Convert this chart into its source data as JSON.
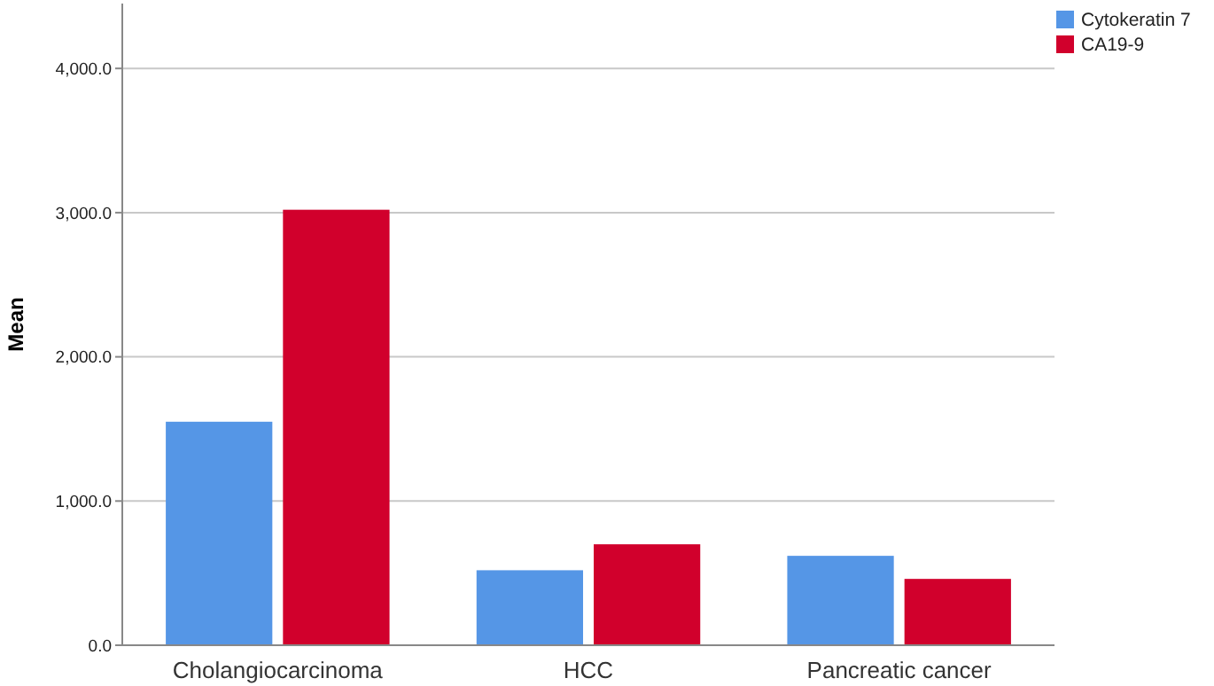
{
  "chart_data": {
    "type": "bar",
    "ylabel": "Mean",
    "categories": [
      "Cholangiocarcinoma",
      "HCC",
      "Pancreatic cancer"
    ],
    "series": [
      {
        "name": "Cytokeratin 7",
        "color": "#5596e6",
        "values": [
          1550,
          520,
          620
        ]
      },
      {
        "name": "CA19-9",
        "color": "#d1002c",
        "values": [
          3020,
          700,
          460
        ]
      }
    ],
    "ylim": [
      0,
      4450
    ],
    "yticks": [
      {
        "value": 0,
        "label": "0.0"
      },
      {
        "value": 1000,
        "label": "1,000.0"
      },
      {
        "value": 2000,
        "label": "2,000.0"
      },
      {
        "value": 3000,
        "label": "3,000.0"
      },
      {
        "value": 4000,
        "label": "4,000.0"
      }
    ],
    "grid": "y",
    "legend": "top right"
  }
}
